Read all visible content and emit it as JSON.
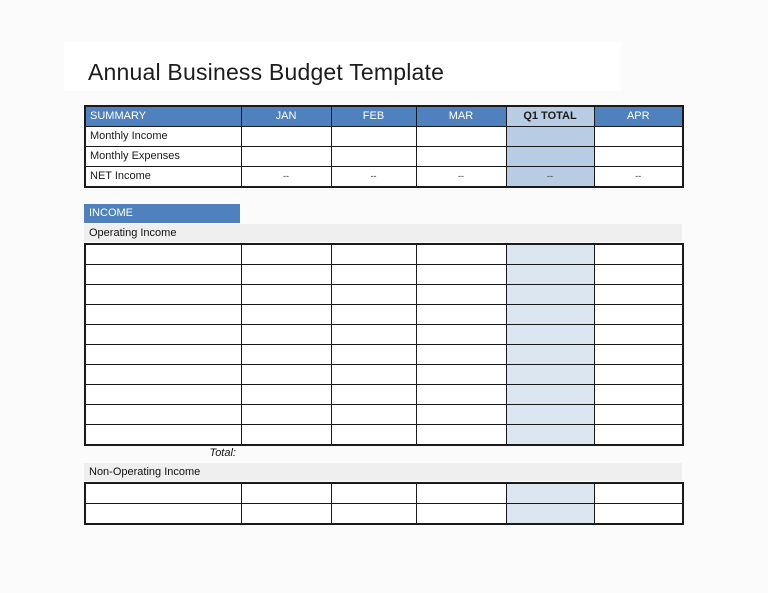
{
  "title": "Annual Business Budget Template",
  "colors": {
    "header_blue": "#4E81BD",
    "light_blue_header": "#B8CCE4",
    "summary_total_fill": "#B8CCE4",
    "grid_total_fill": "#DCE6F1",
    "section_band": "#EFEFEF",
    "border_dark": "#1A1A1A"
  },
  "summary_table": {
    "columns": [
      "SUMMARY",
      "JAN",
      "FEB",
      "MAR",
      "Q1 TOTAL",
      "APR"
    ],
    "rows": [
      {
        "label": "Monthly Income",
        "values": [
          "",
          "",
          "",
          "",
          ""
        ]
      },
      {
        "label": "Monthly Expenses",
        "values": [
          "",
          "",
          "",
          "",
          ""
        ]
      },
      {
        "label": "NET Income",
        "values": [
          "--",
          "--",
          "--",
          "--",
          "--"
        ]
      }
    ]
  },
  "income_section": {
    "header_label": "INCOME",
    "operating": {
      "label": "Operating Income",
      "row_count": 10,
      "total_label": "Total:"
    },
    "non_operating": {
      "label": "Non-Operating Income",
      "row_count": 2
    }
  }
}
